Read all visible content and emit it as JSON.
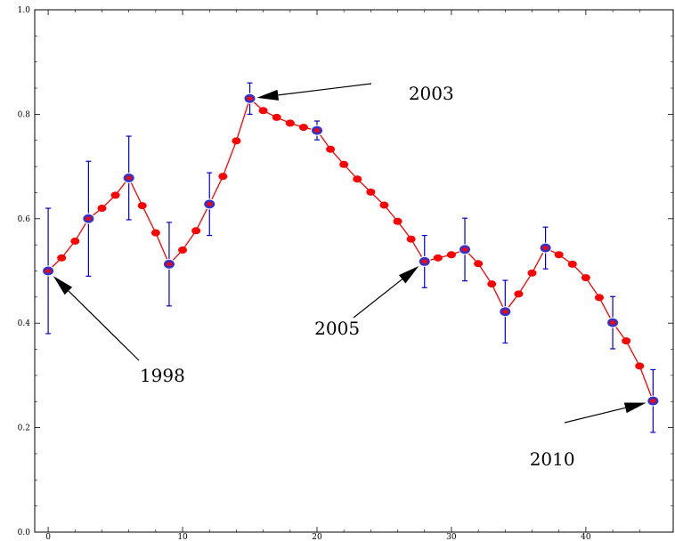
{
  "chart_data": {
    "type": "line",
    "title": "",
    "xlabel": "",
    "ylabel": "",
    "xlim": [
      -1,
      46.5
    ],
    "ylim": [
      0,
      1.0
    ],
    "x_ticks": [
      0,
      10,
      20,
      30,
      40
    ],
    "x_tick_labels": [
      "0",
      "10",
      "20",
      "30",
      "40"
    ],
    "y_ticks": [
      0.0,
      0.2,
      0.4,
      0.6,
      0.8,
      1.0
    ],
    "y_tick_labels": [
      "0.0",
      "0.2",
      "0.4",
      "0.6",
      "0.8",
      "1.0"
    ],
    "grid": false,
    "colors": {
      "line": "#ff0000",
      "points": "#ff0000",
      "measured": "#3333cc",
      "errorbar": "#0000cc"
    },
    "series": [
      {
        "x": [
          0,
          1,
          2,
          3,
          4,
          5,
          6,
          7,
          8,
          9,
          10,
          11,
          12,
          13,
          14,
          15,
          16,
          17,
          18,
          19,
          20,
          21,
          22,
          23,
          24,
          25,
          26,
          27,
          28,
          29,
          30,
          31,
          32,
          33,
          34,
          35,
          36,
          37,
          38,
          39,
          40,
          41,
          42,
          43,
          44,
          45
        ],
        "y": [
          0.5,
          0.525,
          0.557,
          0.6,
          0.62,
          0.645,
          0.678,
          0.625,
          0.573,
          0.513,
          0.54,
          0.577,
          0.628,
          0.681,
          0.749,
          0.83,
          0.807,
          0.794,
          0.783,
          0.775,
          0.769,
          0.733,
          0.704,
          0.676,
          0.651,
          0.626,
          0.595,
          0.561,
          0.518,
          0.525,
          0.531,
          0.541,
          0.514,
          0.475,
          0.422,
          0.456,
          0.496,
          0.544,
          0.531,
          0.513,
          0.487,
          0.449,
          0.401,
          0.366,
          0.318,
          0.251
        ]
      }
    ],
    "measured": {
      "x": [
        0,
        3,
        6,
        9,
        12,
        15,
        20,
        28,
        31,
        34,
        37,
        42,
        45
      ],
      "y": [
        0.5,
        0.6,
        0.678,
        0.513,
        0.628,
        0.83,
        0.769,
        0.518,
        0.541,
        0.422,
        0.544,
        0.401,
        0.251
      ],
      "err": [
        0.12,
        0.11,
        0.08,
        0.08,
        0.06,
        0.03,
        0.018,
        0.05,
        0.06,
        0.06,
        0.04,
        0.05,
        0.06
      ]
    },
    "annotations": [
      {
        "text": "1998",
        "x": 0,
        "y": 0.5,
        "text_x": 8.5,
        "text_y": 0.3
      },
      {
        "text": "2003",
        "x": 15,
        "y": 0.83,
        "text_x": 28.5,
        "text_y": 0.84
      },
      {
        "text": "2005",
        "x": 28,
        "y": 0.518,
        "text_x": 21.5,
        "text_y": 0.39
      },
      {
        "text": "2010",
        "x": 45,
        "y": 0.251,
        "text_x": 37.5,
        "text_y": 0.14
      }
    ]
  }
}
